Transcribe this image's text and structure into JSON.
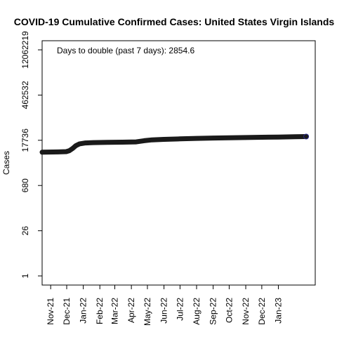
{
  "chart_data": {
    "type": "line",
    "title": "COVID-19 Cumulative Confirmed Cases: United States Virgin Islands",
    "ylabel": "Cases",
    "xlabel": "",
    "annotation": "Days to double (past 7 days): 2854.6",
    "y_scale": "log",
    "y_ticks": [
      1,
      26,
      680,
      17736,
      462532,
      12062219
    ],
    "y_tick_labels": [
      "1",
      "26",
      "680",
      "17736",
      "462532",
      "12062219"
    ],
    "x_ticks": [
      "Nov-21",
      "Dec-21",
      "Jan-22",
      "Feb-22",
      "Mar-22",
      "Apr-22",
      "May-22",
      "Jun-22",
      "Jul-22",
      "Aug-22",
      "Sep-22",
      "Oct-22",
      "Nov-22",
      "Dec-22",
      "Jan-23"
    ],
    "x_range": [
      "2021-10-16",
      "2023-03-11"
    ],
    "grid": false,
    "series": [
      {
        "color": "#1a1a1a",
        "points": [
          {
            "x": "2021-10-16",
            "y": 7500
          },
          {
            "x": "2021-11-15",
            "y": 7650
          },
          {
            "x": "2021-11-30",
            "y": 7800
          },
          {
            "x": "2021-12-06",
            "y": 8400
          },
          {
            "x": "2021-12-12",
            "y": 9800
          },
          {
            "x": "2021-12-18",
            "y": 12000
          },
          {
            "x": "2021-12-25",
            "y": 13700
          },
          {
            "x": "2022-01-05",
            "y": 14600
          },
          {
            "x": "2022-01-20",
            "y": 15000
          },
          {
            "x": "2022-02-15",
            "y": 15200
          },
          {
            "x": "2022-03-15",
            "y": 15450
          },
          {
            "x": "2022-04-10",
            "y": 15800
          },
          {
            "x": "2022-04-25",
            "y": 17200
          },
          {
            "x": "2022-05-10",
            "y": 18300
          },
          {
            "x": "2022-06-01",
            "y": 18900
          },
          {
            "x": "2022-07-01",
            "y": 19600
          },
          {
            "x": "2022-08-01",
            "y": 20300
          },
          {
            "x": "2022-09-01",
            "y": 20900
          },
          {
            "x": "2022-10-01",
            "y": 21300
          },
          {
            "x": "2022-11-01",
            "y": 21600
          },
          {
            "x": "2022-12-01",
            "y": 22000
          },
          {
            "x": "2023-01-01",
            "y": 22400
          },
          {
            "x": "2023-02-01",
            "y": 22900
          },
          {
            "x": "2023-02-22",
            "y": 23200
          }
        ]
      }
    ]
  }
}
